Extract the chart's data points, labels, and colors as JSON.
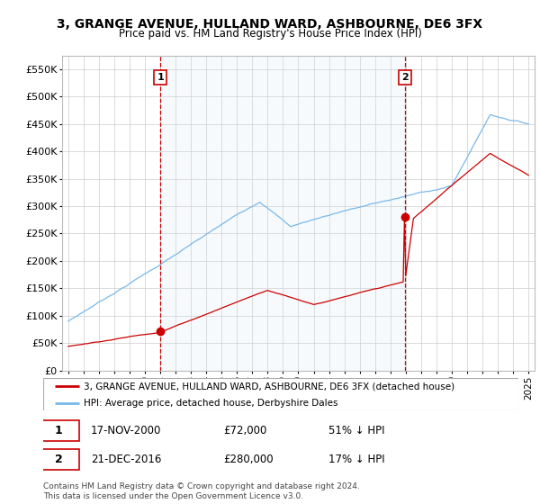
{
  "title": "3, GRANGE AVENUE, HULLAND WARD, ASHBOURNE, DE6 3FX",
  "subtitle": "Price paid vs. HM Land Registry's House Price Index (HPI)",
  "ylim": [
    0,
    575000
  ],
  "yticks": [
    0,
    50000,
    100000,
    150000,
    200000,
    250000,
    300000,
    350000,
    400000,
    450000,
    500000,
    550000
  ],
  "hpi_color": "#7ab8e8",
  "hpi_fill_color": "#d0e8f8",
  "price_color": "#cc0000",
  "marker1_year": 2001.0,
  "marker1_price": 72000,
  "marker2_year": 2016.95,
  "marker2_price": 280000,
  "vline_color": "#cc0000",
  "legend_label_price": "3, GRANGE AVENUE, HULLAND WARD, ASHBOURNE, DE6 3FX (detached house)",
  "legend_label_hpi": "HPI: Average price, detached house, Derbyshire Dales",
  "footnote": "Contains HM Land Registry data © Crown copyright and database right 2024.\nThis data is licensed under the Open Government Licence v3.0.",
  "table_row1": [
    "1",
    "17-NOV-2000",
    "£72,000",
    "51% ↓ HPI"
  ],
  "table_row2": [
    "2",
    "21-DEC-2016",
    "£280,000",
    "17% ↓ HPI"
  ],
  "background_color": "#ffffff",
  "grid_color": "#cccccc",
  "xlim_left": 1994.6,
  "xlim_right": 2025.4
}
